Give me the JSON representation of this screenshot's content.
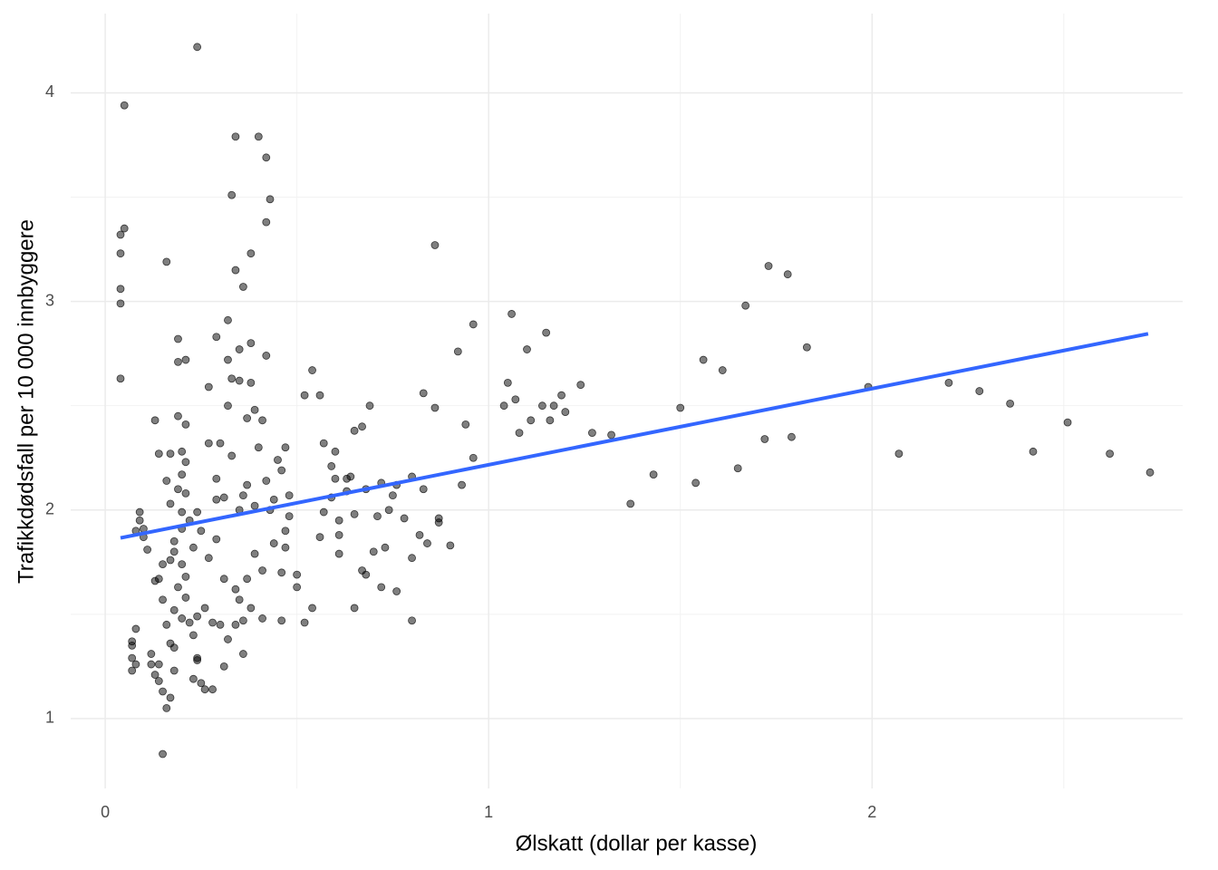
{
  "chart_data": {
    "type": "scatter",
    "x_label": "Ølskatt (dollar per kasse)",
    "y_label": "Trafikkdødsfall per 10 000 innbyggere",
    "xlim": [
      -0.09,
      2.81
    ],
    "ylim": [
      0.665,
      4.38
    ],
    "xticks": [
      0,
      1,
      2
    ],
    "yticks": [
      1,
      2,
      3,
      4
    ],
    "x_minor_grid": [
      0.5,
      1.5,
      2.5
    ],
    "y_minor_grid": [
      1.5,
      2.5,
      3.5
    ],
    "grid": true,
    "color": "#000000",
    "alpha": 0.5,
    "fit": {
      "color": "#3366ff",
      "x": [
        0.04,
        2.72
      ],
      "y": [
        1.866,
        2.845
      ]
    },
    "x": [
      2.725,
      2.62,
      2.51,
      2.42,
      2.36,
      2.28,
      2.2,
      2.07,
      1.99,
      1.83,
      1.78,
      1.73,
      1.79,
      1.72,
      1.67,
      1.65,
      1.61,
      1.56,
      1.54,
      1.5,
      1.43,
      1.37,
      1.32,
      1.27,
      1.24,
      1.2,
      1.19,
      1.17,
      1.16,
      1.14,
      1.15,
      1.11,
      1.1,
      1.08,
      1.07,
      1.05,
      1.06,
      1.04,
      0.96,
      0.96,
      0.94,
      0.93,
      0.92,
      0.9,
      0.87,
      0.87,
      0.86,
      0.86,
      0.84,
      0.83,
      0.83,
      0.82,
      0.8,
      0.8,
      0.8,
      0.78,
      0.76,
      0.76,
      0.75,
      0.74,
      0.72,
      0.73,
      0.72,
      0.71,
      0.7,
      0.68,
      0.69,
      0.67,
      0.68,
      0.67,
      0.65,
      0.65,
      0.65,
      0.64,
      0.63,
      0.63,
      0.61,
      0.61,
      0.61,
      0.6,
      0.6,
      0.59,
      0.59,
      0.57,
      0.57,
      0.56,
      0.56,
      0.54,
      0.54,
      0.52,
      0.52,
      0.5,
      0.5,
      0.48,
      0.48,
      0.47,
      0.47,
      0.47,
      0.46,
      0.46,
      0.46,
      0.45,
      0.44,
      0.44,
      0.43,
      0.43,
      0.42,
      0.42,
      0.42,
      0.42,
      0.41,
      0.41,
      0.41,
      0.4,
      0.4,
      0.39,
      0.39,
      0.39,
      0.38,
      0.38,
      0.38,
      0.38,
      0.37,
      0.37,
      0.37,
      0.36,
      0.36,
      0.36,
      0.36,
      0.35,
      0.35,
      0.35,
      0.35,
      0.34,
      0.34,
      0.34,
      0.34,
      0.33,
      0.33,
      0.33,
      0.32,
      0.32,
      0.32,
      0.32,
      0.31,
      0.31,
      0.31,
      0.3,
      0.3,
      0.29,
      0.29,
      0.29,
      0.29,
      0.28,
      0.28,
      0.27,
      0.27,
      0.27,
      0.26,
      0.26,
      0.25,
      0.25,
      0.24,
      0.24,
      0.24,
      0.24,
      0.24,
      0.23,
      0.23,
      0.23,
      0.22,
      0.22,
      0.21,
      0.21,
      0.21,
      0.21,
      0.21,
      0.21,
      0.2,
      0.2,
      0.2,
      0.2,
      0.2,
      0.2,
      0.19,
      0.19,
      0.19,
      0.19,
      0.19,
      0.18,
      0.18,
      0.18,
      0.18,
      0.18,
      0.17,
      0.17,
      0.17,
      0.17,
      0.17,
      0.16,
      0.16,
      0.16,
      0.16,
      0.15,
      0.15,
      0.15,
      0.15,
      0.14,
      0.14,
      0.14,
      0.14,
      0.13,
      0.13,
      0.13,
      0.12,
      0.12,
      0.11,
      0.1,
      0.1,
      0.09,
      0.09,
      0.08,
      0.08,
      0.08,
      0.07,
      0.07,
      0.07,
      0.07,
      0.05,
      0.05,
      0.04,
      0.04,
      0.04,
      0.04,
      0.04
    ],
    "values": [
      2.18,
      2.27,
      2.42,
      2.28,
      2.51,
      2.57,
      2.61,
      2.27,
      2.59,
      2.78,
      3.13,
      3.17,
      2.35,
      2.34,
      2.98,
      2.2,
      2.67,
      2.72,
      2.13,
      2.49,
      2.17,
      2.03,
      2.36,
      2.37,
      2.6,
      2.47,
      2.55,
      2.5,
      2.43,
      2.5,
      2.85,
      2.43,
      2.77,
      2.37,
      2.53,
      2.61,
      2.94,
      2.5,
      2.89,
      2.25,
      2.41,
      2.12,
      2.76,
      1.83,
      1.96,
      1.94,
      2.49,
      3.27,
      1.84,
      2.56,
      2.1,
      1.88,
      1.47,
      2.16,
      1.77,
      1.96,
      2.12,
      1.61,
      2.07,
      2.0,
      1.63,
      1.82,
      2.13,
      1.97,
      1.8,
      2.1,
      2.5,
      2.4,
      1.69,
      1.71,
      1.98,
      2.38,
      1.53,
      2.16,
      2.15,
      2.09,
      1.95,
      1.88,
      1.79,
      2.15,
      2.28,
      2.21,
      2.06,
      2.32,
      1.99,
      1.87,
      2.55,
      1.53,
      2.67,
      2.55,
      1.46,
      1.69,
      1.63,
      2.07,
      1.97,
      2.3,
      1.9,
      1.82,
      1.7,
      2.19,
      1.47,
      2.24,
      2.05,
      1.84,
      3.49,
      2.0,
      2.14,
      2.74,
      3.69,
      3.38,
      2.43,
      1.71,
      1.48,
      2.3,
      3.79,
      2.48,
      2.02,
      1.79,
      3.23,
      1.53,
      2.61,
      2.8,
      2.12,
      2.44,
      1.67,
      1.47,
      1.31,
      3.07,
      2.07,
      1.57,
      2.77,
      2.62,
      2.0,
      3.79,
      3.15,
      1.62,
      1.45,
      2.26,
      2.63,
      3.51,
      2.91,
      2.72,
      1.38,
      2.5,
      2.06,
      1.67,
      1.25,
      1.45,
      2.32,
      1.86,
      2.83,
      2.15,
      2.05,
      1.14,
      1.46,
      1.77,
      2.59,
      2.32,
      1.53,
      1.14,
      1.9,
      1.17,
      1.28,
      1.99,
      1.49,
      4.22,
      1.29,
      1.19,
      1.4,
      1.82,
      1.95,
      1.46,
      1.58,
      2.72,
      2.23,
      1.68,
      2.08,
      2.41,
      1.74,
      2.17,
      1.99,
      2.28,
      1.48,
      1.91,
      2.82,
      2.71,
      1.63,
      2.1,
      2.45,
      1.8,
      1.85,
      1.52,
      1.23,
      1.34,
      2.27,
      2.03,
      1.36,
      1.76,
      1.1,
      2.14,
      1.05,
      3.19,
      1.45,
      0.83,
      1.74,
      1.57,
      1.13,
      1.67,
      2.27,
      1.26,
      1.18,
      2.43,
      1.66,
      1.21,
      1.31,
      1.26,
      1.81,
      1.91,
      1.87,
      1.95,
      1.99,
      1.43,
      1.9,
      1.26,
      1.23,
      1.35,
      1.29,
      1.37,
      3.94,
      3.35,
      3.32,
      3.06,
      2.99,
      3.23,
      2.63
    ]
  }
}
